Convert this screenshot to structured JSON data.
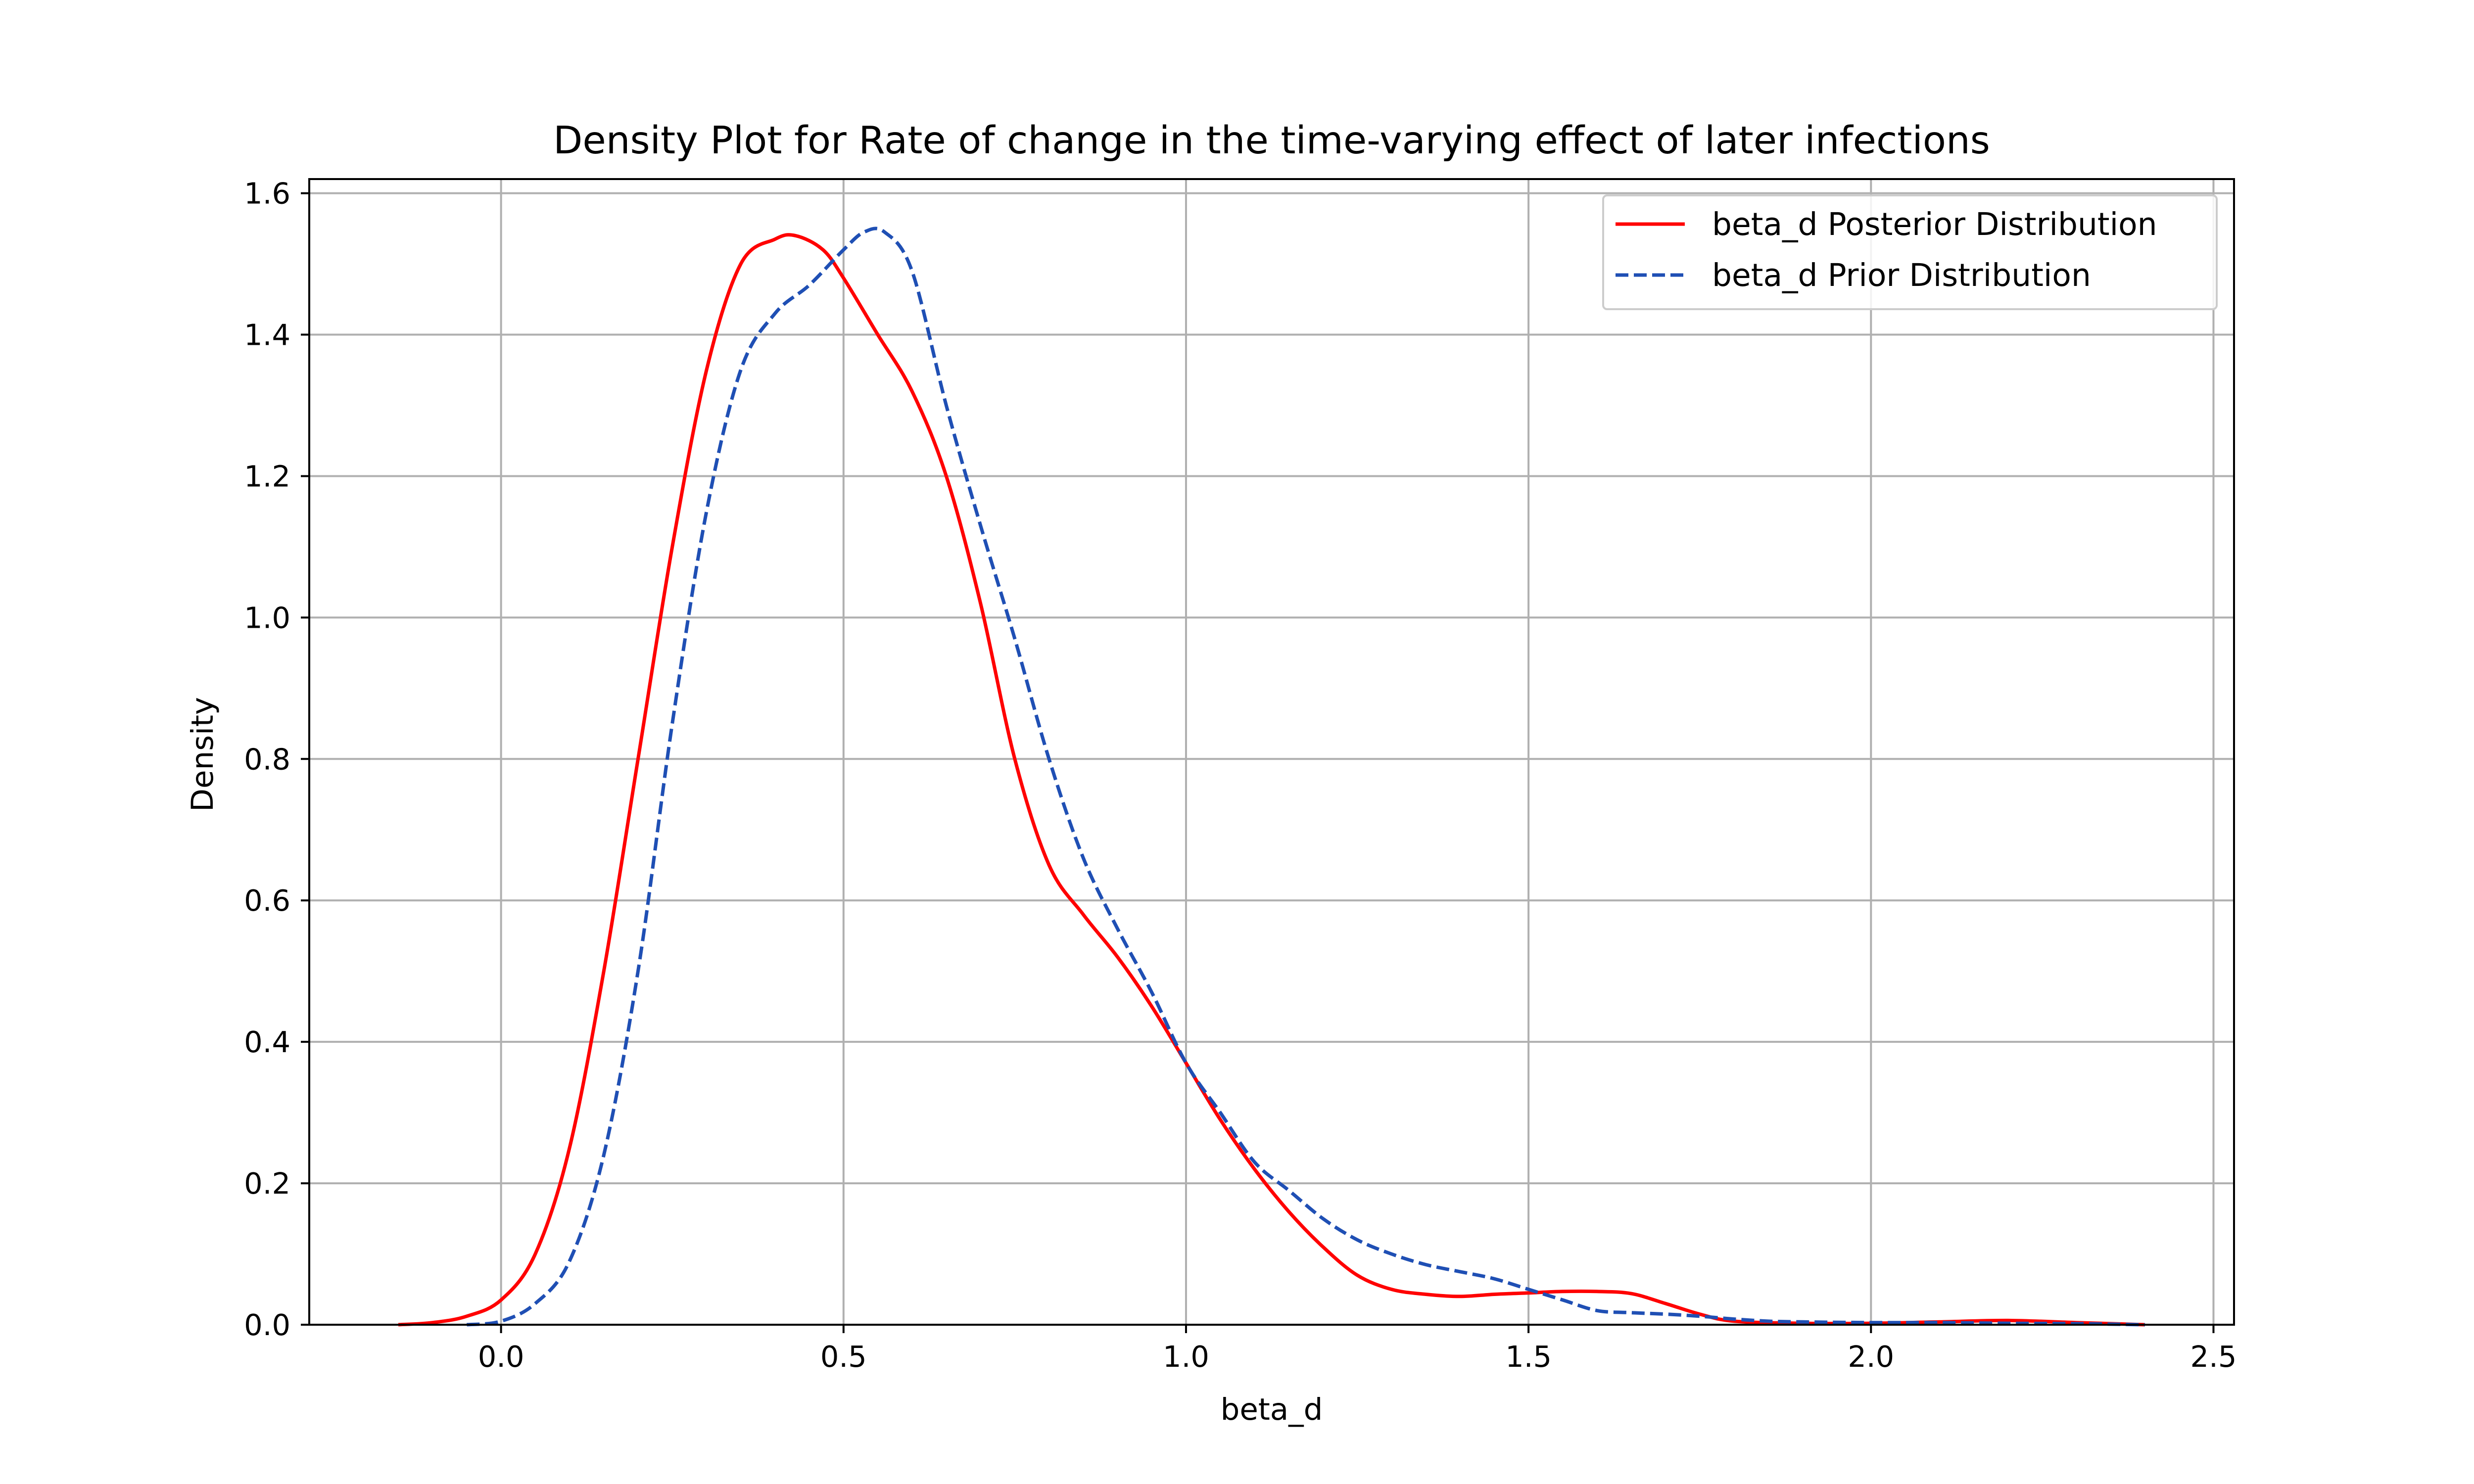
{
  "chart_data": {
    "type": "line",
    "title": "Density Plot for Rate of change in the time-varying effect of later infections",
    "xlabel": "beta_d",
    "ylabel": "Density",
    "xlim": [
      -0.28,
      2.53
    ],
    "ylim": [
      0.0,
      1.62
    ],
    "xticks": [
      0.0,
      0.5,
      1.0,
      1.5,
      2.0,
      2.5
    ],
    "xtick_labels": [
      "0.0",
      "0.5",
      "1.0",
      "1.5",
      "2.0",
      "2.5"
    ],
    "yticks": [
      0.0,
      0.2,
      0.4,
      0.6,
      0.8,
      1.0,
      1.2,
      1.4,
      1.6
    ],
    "ytick_labels": [
      "0.0",
      "0.2",
      "0.4",
      "0.6",
      "0.8",
      "1.0",
      "1.2",
      "1.4",
      "1.6"
    ],
    "grid": true,
    "legend_position": "top-right",
    "series": [
      {
        "name": "beta_d Posterior Distribution",
        "color": "#ff0000",
        "style": "solid",
        "x": [
          -0.15,
          -0.1,
          -0.05,
          0.0,
          0.05,
          0.1,
          0.15,
          0.2,
          0.25,
          0.3,
          0.35,
          0.4,
          0.43,
          0.47,
          0.5,
          0.55,
          0.6,
          0.65,
          0.7,
          0.75,
          0.8,
          0.85,
          0.9,
          0.95,
          1.0,
          1.05,
          1.1,
          1.15,
          1.2,
          1.25,
          1.3,
          1.35,
          1.4,
          1.45,
          1.5,
          1.55,
          1.6,
          1.65,
          1.7,
          1.75,
          1.8,
          1.9,
          2.0,
          2.1,
          2.2,
          2.3,
          2.4
        ],
        "y": [
          0.0,
          0.003,
          0.012,
          0.035,
          0.1,
          0.25,
          0.5,
          0.8,
          1.1,
          1.35,
          1.5,
          1.535,
          1.54,
          1.52,
          1.48,
          1.4,
          1.32,
          1.2,
          1.02,
          0.8,
          0.65,
          0.58,
          0.52,
          0.45,
          0.37,
          0.29,
          0.22,
          0.16,
          0.11,
          0.07,
          0.05,
          0.043,
          0.04,
          0.043,
          0.045,
          0.047,
          0.047,
          0.044,
          0.03,
          0.015,
          0.005,
          0.002,
          0.002,
          0.004,
          0.006,
          0.003,
          0.0
        ]
      },
      {
        "name": "beta_d Prior Distribution",
        "color": "#1f4fb4",
        "style": "dashed",
        "x": [
          -0.05,
          0.0,
          0.05,
          0.1,
          0.15,
          0.2,
          0.25,
          0.3,
          0.35,
          0.4,
          0.45,
          0.5,
          0.53,
          0.56,
          0.6,
          0.65,
          0.7,
          0.75,
          0.8,
          0.85,
          0.9,
          0.95,
          1.0,
          1.05,
          1.1,
          1.15,
          1.2,
          1.25,
          1.3,
          1.35,
          1.4,
          1.45,
          1.5,
          1.55,
          1.6,
          1.65,
          1.7,
          1.75,
          1.8,
          1.85,
          1.9,
          2.0,
          2.1,
          2.2,
          2.3,
          2.4
        ],
        "y": [
          0.0,
          0.005,
          0.03,
          0.09,
          0.24,
          0.5,
          0.85,
          1.15,
          1.35,
          1.43,
          1.47,
          1.52,
          1.545,
          1.545,
          1.49,
          1.3,
          1.13,
          0.97,
          0.8,
          0.66,
          0.56,
          0.47,
          0.37,
          0.3,
          0.23,
          0.19,
          0.15,
          0.12,
          0.1,
          0.085,
          0.075,
          0.065,
          0.05,
          0.035,
          0.02,
          0.017,
          0.015,
          0.012,
          0.008,
          0.005,
          0.004,
          0.003,
          0.003,
          0.002,
          0.0015,
          0.0
        ]
      }
    ]
  }
}
